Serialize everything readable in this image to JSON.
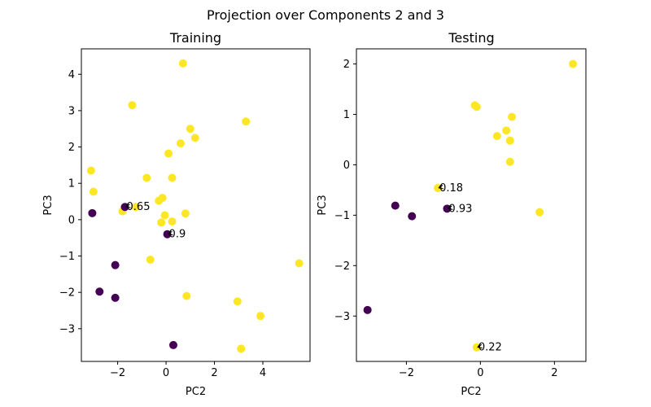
{
  "figure": {
    "suptitle": "Projection over Components 2 and 3"
  },
  "colors": {
    "class_0": "#440154",
    "class_1": "#fde725",
    "axis": "#000000"
  },
  "chart_data": [
    {
      "type": "scatter",
      "title": "Training",
      "xlabel": "PC2",
      "ylabel": "PC3",
      "xlim": [
        -3.5,
        5.95
      ],
      "ylim": [
        -3.9,
        4.7
      ],
      "xticks": [
        -2,
        0,
        2,
        4
      ],
      "yticks": [
        -3,
        -2,
        -1,
        0,
        1,
        2,
        3,
        4
      ],
      "grid": false,
      "points": [
        {
          "x": 0.7,
          "y": 4.3,
          "c": 1
        },
        {
          "x": -1.4,
          "y": 3.15,
          "c": 1
        },
        {
          "x": 3.3,
          "y": 2.7,
          "c": 1
        },
        {
          "x": 1.0,
          "y": 2.5,
          "c": 1
        },
        {
          "x": 1.2,
          "y": 2.25,
          "c": 1
        },
        {
          "x": 0.6,
          "y": 2.1,
          "c": 1
        },
        {
          "x": 0.1,
          "y": 1.82,
          "c": 1
        },
        {
          "x": -3.1,
          "y": 1.35,
          "c": 1
        },
        {
          "x": -0.8,
          "y": 1.15,
          "c": 1
        },
        {
          "x": 0.25,
          "y": 1.15,
          "c": 1
        },
        {
          "x": -3.0,
          "y": 0.77,
          "c": 1
        },
        {
          "x": -0.15,
          "y": 0.6,
          "c": 1
        },
        {
          "x": -0.3,
          "y": 0.52,
          "c": 1
        },
        {
          "x": -1.25,
          "y": 0.35,
          "c": 1
        },
        {
          "x": -1.8,
          "y": 0.23,
          "c": 1
        },
        {
          "x": -0.05,
          "y": 0.12,
          "c": 1
        },
        {
          "x": 0.8,
          "y": 0.17,
          "c": 1
        },
        {
          "x": 0.25,
          "y": -0.05,
          "c": 1
        },
        {
          "x": -0.2,
          "y": -0.08,
          "c": 1
        },
        {
          "x": -0.65,
          "y": -1.1,
          "c": 1
        },
        {
          "x": 5.5,
          "y": -1.2,
          "c": 1
        },
        {
          "x": 0.85,
          "y": -2.1,
          "c": 1
        },
        {
          "x": 2.95,
          "y": -2.25,
          "c": 1
        },
        {
          "x": 3.9,
          "y": -2.65,
          "c": 1
        },
        {
          "x": 3.1,
          "y": -3.55,
          "c": 1
        },
        {
          "x": -1.7,
          "y": 0.35,
          "c": 0
        },
        {
          "x": -3.05,
          "y": 0.18,
          "c": 0
        },
        {
          "x": 0.05,
          "y": -0.4,
          "c": 0
        },
        {
          "x": -2.1,
          "y": -1.25,
          "c": 0
        },
        {
          "x": -2.75,
          "y": -1.98,
          "c": 0
        },
        {
          "x": -2.1,
          "y": -2.15,
          "c": 0
        },
        {
          "x": 0.3,
          "y": -3.45,
          "c": 0
        }
      ],
      "annotations": [
        {
          "text": "0.65",
          "x": -1.7,
          "y": 0.35
        },
        {
          "text": "0.9",
          "x": 0.05,
          "y": -0.4
        }
      ]
    },
    {
      "type": "scatter",
      "title": "Testing",
      "xlabel": "PC2",
      "ylabel": "PC3",
      "xlim": [
        -3.35,
        2.85
      ],
      "ylim": [
        -3.9,
        2.3
      ],
      "xticks": [
        -2,
        0,
        2
      ],
      "yticks": [
        -3,
        -2,
        -1,
        0,
        1,
        2
      ],
      "grid": false,
      "points": [
        {
          "x": 2.5,
          "y": 2.0,
          "c": 1
        },
        {
          "x": -0.15,
          "y": 1.18,
          "c": 1
        },
        {
          "x": -0.1,
          "y": 1.15,
          "c": 1
        },
        {
          "x": 0.85,
          "y": 0.95,
          "c": 1
        },
        {
          "x": 0.7,
          "y": 0.68,
          "c": 1
        },
        {
          "x": 0.45,
          "y": 0.57,
          "c": 1
        },
        {
          "x": 0.8,
          "y": 0.48,
          "c": 1
        },
        {
          "x": 0.8,
          "y": 0.06,
          "c": 1
        },
        {
          "x": -1.15,
          "y": -0.46,
          "c": 1
        },
        {
          "x": 1.6,
          "y": -0.94,
          "c": 1
        },
        {
          "x": -0.1,
          "y": -3.62,
          "c": 1
        },
        {
          "x": -2.3,
          "y": -0.81,
          "c": 0
        },
        {
          "x": -0.9,
          "y": -0.87,
          "c": 0
        },
        {
          "x": -1.85,
          "y": -1.02,
          "c": 0
        },
        {
          "x": -3.05,
          "y": -2.88,
          "c": 0
        }
      ],
      "annotations": [
        {
          "text": "0.18",
          "x": -1.15,
          "y": -0.46
        },
        {
          "text": "0.93",
          "x": -0.9,
          "y": -0.87
        },
        {
          "text": "0.22",
          "x": -0.1,
          "y": -3.62
        }
      ]
    }
  ]
}
